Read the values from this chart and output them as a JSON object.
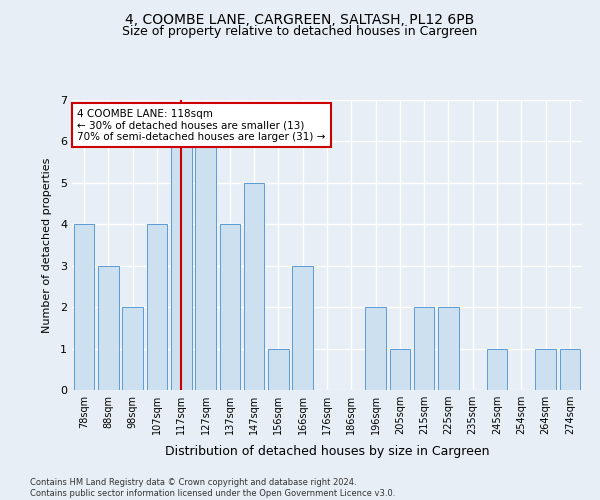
{
  "title1": "4, COOMBE LANE, CARGREEN, SALTASH, PL12 6PB",
  "title2": "Size of property relative to detached houses in Cargreen",
  "xlabel": "Distribution of detached houses by size in Cargreen",
  "ylabel": "Number of detached properties",
  "categories": [
    "78sqm",
    "88sqm",
    "98sqm",
    "107sqm",
    "117sqm",
    "127sqm",
    "137sqm",
    "147sqm",
    "156sqm",
    "166sqm",
    "176sqm",
    "186sqm",
    "196sqm",
    "205sqm",
    "215sqm",
    "225sqm",
    "235sqm",
    "245sqm",
    "254sqm",
    "264sqm",
    "274sqm"
  ],
  "values": [
    4,
    3,
    2,
    4,
    6,
    6,
    4,
    5,
    1,
    3,
    0,
    0,
    2,
    1,
    2,
    2,
    0,
    1,
    0,
    1,
    1
  ],
  "bar_color": "#cce0f0",
  "bar_edge_color": "#5b9bd5",
  "vline_x_index": 4,
  "vline_color": "#cc0000",
  "annotation_text": "4 COOMBE LANE: 118sqm\n← 30% of detached houses are smaller (13)\n70% of semi-detached houses are larger (31) →",
  "annotation_box_color": "#ffffff",
  "annotation_box_edge": "#cc0000",
  "ylim": [
    0,
    7
  ],
  "yticks": [
    0,
    1,
    2,
    3,
    4,
    5,
    6,
    7
  ],
  "footnote": "Contains HM Land Registry data © Crown copyright and database right 2024.\nContains public sector information licensed under the Open Government Licence v3.0.",
  "bg_color": "#e8eef5",
  "plot_bg_color": "#e8eef5",
  "grid_color": "#ffffff",
  "title1_fontsize": 10,
  "title2_fontsize": 9
}
